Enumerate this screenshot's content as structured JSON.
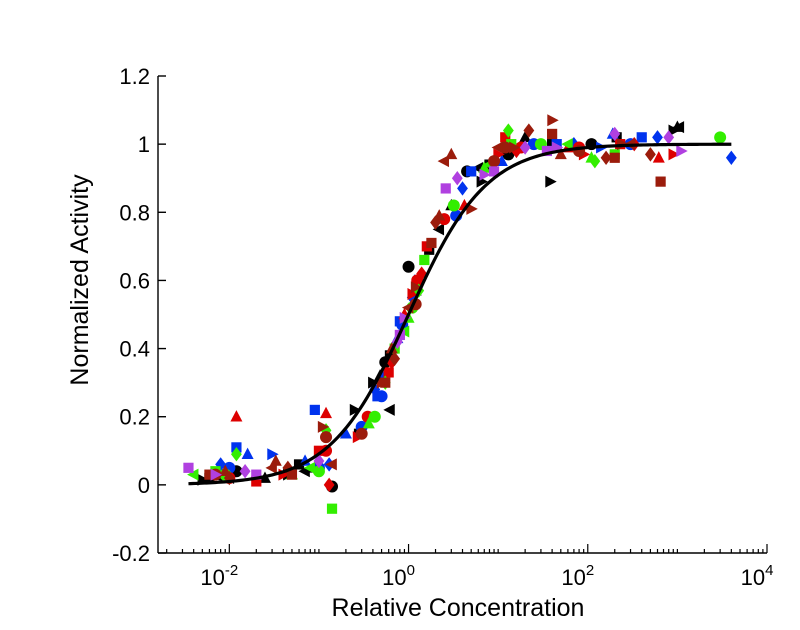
{
  "chart_data": {
    "type": "scatter",
    "title": "",
    "xlabel": "Relative Concentration",
    "ylabel": "Normalized Activity",
    "xscale": "log",
    "xlim": [
      0.0016,
      10000
    ],
    "ylim": [
      -0.2,
      1.2
    ],
    "x_ticks": [
      {
        "value": 0.01,
        "base": "10",
        "exp": "-2"
      },
      {
        "value": 1,
        "base": "10",
        "exp": "0"
      },
      {
        "value": 100,
        "base": "10",
        "exp": "2"
      },
      {
        "value": 10000,
        "base": "10",
        "exp": "4"
      }
    ],
    "y_ticks": [
      "-0.2",
      "0",
      "0.2",
      "0.4",
      "0.6",
      "0.8",
      "1",
      "1.2"
    ],
    "grid": false,
    "legend": "none",
    "fit_curve": {
      "model": "hill",
      "ec50": 1.0,
      "hill_slope": 1.0,
      "bottom": 0.0,
      "top": 1.0,
      "x_range": [
        0.0035,
        4000
      ],
      "color": "#000000"
    },
    "series": [
      {
        "marker": "circle",
        "color": "#000000",
        "points": [
          [
            0.008,
            0.03
          ],
          [
            0.012,
            0.04
          ],
          [
            0.14,
            -0.005
          ],
          [
            0.55,
            0.36
          ],
          [
            1.0,
            0.64
          ],
          [
            4.5,
            0.92
          ],
          [
            13.0,
            0.97
          ],
          [
            110,
            1.0
          ]
        ]
      },
      {
        "marker": "square",
        "color": "#000000",
        "points": [
          [
            0.006,
            0.02
          ],
          [
            0.06,
            0.06
          ],
          [
            0.28,
            0.15
          ],
          [
            0.62,
            0.38
          ],
          [
            1.7,
            0.69
          ],
          [
            8.0,
            0.94
          ],
          [
            40.0,
            1.0
          ],
          [
            210,
            1.02
          ]
        ]
      },
      {
        "marker": "triangle-up",
        "color": "#000000",
        "points": [
          [
            0.025,
            0.02
          ],
          [
            0.09,
            0.05
          ],
          [
            0.48,
            0.32
          ],
          [
            1.2,
            0.57
          ],
          [
            3.0,
            0.82
          ],
          [
            20.0,
            1.02
          ],
          [
            1000,
            1.05
          ]
        ]
      },
      {
        "marker": "triangle-right",
        "color": "#000000",
        "points": [
          [
            0.005,
            0.015
          ],
          [
            0.045,
            0.03
          ],
          [
            0.25,
            0.22
          ],
          [
            0.4,
            0.3
          ],
          [
            6.5,
            0.89
          ],
          [
            38.0,
            0.89
          ],
          [
            900,
            1.04
          ]
        ]
      },
      {
        "marker": "triangle-left",
        "color": "#000000",
        "points": [
          [
            0.01,
            0.02
          ],
          [
            0.07,
            0.04
          ],
          [
            0.62,
            0.22
          ],
          [
            2.2,
            0.75
          ],
          [
            6.0,
            0.93
          ],
          [
            1050,
            1.05
          ]
        ]
      },
      {
        "marker": "circle",
        "color": "#0033ee",
        "points": [
          [
            0.01,
            0.05
          ],
          [
            0.1,
            0.05
          ],
          [
            0.3,
            0.17
          ],
          [
            0.5,
            0.26
          ],
          [
            0.85,
            0.47
          ],
          [
            3.4,
            0.79
          ],
          [
            25.0,
            1.0
          ],
          [
            300,
            1.0
          ]
        ]
      },
      {
        "marker": "square",
        "color": "#0033ee",
        "points": [
          [
            0.012,
            0.11
          ],
          [
            0.09,
            0.22
          ],
          [
            0.45,
            0.26
          ],
          [
            0.8,
            0.48
          ],
          [
            5.0,
            0.92
          ],
          [
            45.0,
            1.0
          ],
          [
            400,
            1.02
          ]
        ]
      },
      {
        "marker": "triangle-up",
        "color": "#0033ee",
        "points": [
          [
            0.016,
            0.09
          ],
          [
            0.07,
            0.07
          ],
          [
            0.2,
            0.15
          ],
          [
            0.75,
            0.43
          ],
          [
            11.0,
            0.95
          ],
          [
            190,
            1.03
          ]
        ]
      },
      {
        "marker": "diamond",
        "color": "#0033ee",
        "points": [
          [
            0.008,
            0.06
          ],
          [
            0.13,
            0.06
          ],
          [
            0.42,
            0.28
          ],
          [
            1.1,
            0.55
          ],
          [
            4.0,
            0.87
          ],
          [
            70.0,
            1.0
          ],
          [
            600,
            1.02
          ],
          [
            4000,
            0.96
          ]
        ]
      },
      {
        "marker": "triangle-right",
        "color": "#0033ee",
        "points": [
          [
            0.03,
            0.09
          ],
          [
            0.55,
            0.32
          ],
          [
            1.3,
            0.6
          ],
          [
            14.0,
            1.0
          ],
          [
            140,
            0.99
          ]
        ]
      },
      {
        "marker": "circle",
        "color": "#dd0000",
        "points": [
          [
            0.01,
            0.02
          ],
          [
            0.12,
            0.1
          ],
          [
            0.35,
            0.2
          ],
          [
            1.25,
            0.6
          ],
          [
            2.5,
            0.78
          ],
          [
            18.0,
            0.99
          ],
          [
            80.0,
            0.99
          ]
        ]
      },
      {
        "marker": "square",
        "color": "#dd0000",
        "points": [
          [
            0.02,
            0.01
          ],
          [
            0.1,
            0.1
          ],
          [
            0.6,
            0.33
          ],
          [
            1.6,
            0.7
          ],
          [
            12.0,
            1.02
          ],
          [
            230,
            1.0
          ]
        ]
      },
      {
        "marker": "triangle-up",
        "color": "#dd0000",
        "points": [
          [
            0.012,
            0.2
          ],
          [
            0.12,
            0.21
          ],
          [
            0.9,
            0.5
          ],
          [
            4.2,
            0.82
          ],
          [
            60.0,
            0.99
          ],
          [
            620,
            0.96
          ]
        ]
      },
      {
        "marker": "triangle-right",
        "color": "#dd0000",
        "points": [
          [
            0.04,
            0.03
          ],
          [
            0.27,
            0.14
          ],
          [
            1.1,
            0.56
          ],
          [
            10.0,
            0.97
          ],
          [
            90.0,
            0.97
          ],
          [
            900,
            0.97
          ]
        ]
      },
      {
        "marker": "diamond",
        "color": "#dd0000",
        "points": [
          [
            0.13,
            0.0
          ],
          [
            0.65,
            0.36
          ],
          [
            1.4,
            0.62
          ],
          [
            16.0,
            0.98
          ],
          [
            330,
            1.0
          ]
        ]
      },
      {
        "marker": "circle",
        "color": "#33ee00",
        "points": [
          [
            0.009,
            0.03
          ],
          [
            0.1,
            0.04
          ],
          [
            0.42,
            0.2
          ],
          [
            1.1,
            0.52
          ],
          [
            3.2,
            0.82
          ],
          [
            30.0,
            1.0
          ],
          [
            3000,
            1.02
          ]
        ]
      },
      {
        "marker": "square",
        "color": "#33ee00",
        "points": [
          [
            0.007,
            0.04
          ],
          [
            0.14,
            -0.07
          ],
          [
            0.7,
            0.4
          ],
          [
            1.5,
            0.66
          ],
          [
            14.0,
            1.0
          ],
          [
            200,
            0.97
          ]
        ]
      },
      {
        "marker": "triangle-up",
        "color": "#33ee00",
        "points": [
          [
            0.05,
            0.03
          ],
          [
            0.36,
            0.18
          ],
          [
            1.0,
            0.49
          ],
          [
            7.0,
            0.93
          ],
          [
            110,
            0.96
          ]
        ]
      },
      {
        "marker": "diamond",
        "color": "#33ee00",
        "points": [
          [
            0.012,
            0.09
          ],
          [
            0.12,
            0.16
          ],
          [
            0.55,
            0.3
          ],
          [
            1.3,
            0.57
          ],
          [
            13.0,
            1.04
          ],
          [
            120,
            0.95
          ]
        ]
      },
      {
        "marker": "triangle-left",
        "color": "#33ee00",
        "points": [
          [
            0.004,
            0.03
          ],
          [
            0.08,
            0.05
          ],
          [
            0.9,
            0.45
          ],
          [
            8.0,
            0.94
          ],
          [
            60.0,
            1.0
          ]
        ]
      },
      {
        "marker": "circle",
        "color": "#9b1c0c",
        "points": [
          [
            0.007,
            0.03
          ],
          [
            0.12,
            0.14
          ],
          [
            0.3,
            0.15
          ],
          [
            1.2,
            0.53
          ],
          [
            9.0,
            0.95
          ],
          [
            12.0,
            0.99
          ],
          [
            80.0,
            0.98
          ]
        ]
      },
      {
        "marker": "square",
        "color": "#9b1c0c",
        "points": [
          [
            0.006,
            0.03
          ],
          [
            0.05,
            0.03
          ],
          [
            0.55,
            0.3
          ],
          [
            1.8,
            0.71
          ],
          [
            40.0,
            1.03
          ],
          [
            200,
            0.96
          ],
          [
            650,
            0.89
          ]
        ]
      },
      {
        "marker": "triangle-up",
        "color": "#9b1c0c",
        "points": [
          [
            0.009,
            0.04
          ],
          [
            0.033,
            0.07
          ],
          [
            0.65,
            0.4
          ],
          [
            2.2,
            0.79
          ],
          [
            3.0,
            0.97
          ],
          [
            50.0,
            0.97
          ]
        ]
      },
      {
        "marker": "triangle-right",
        "color": "#9b1c0c",
        "points": [
          [
            0.11,
            0.17
          ],
          [
            0.5,
            0.3
          ],
          [
            1.2,
            0.58
          ],
          [
            5.0,
            0.81
          ],
          [
            15.0,
            0.99
          ],
          [
            40.0,
            1.07
          ],
          [
            240,
            1.0
          ]
        ]
      },
      {
        "marker": "triangle-left",
        "color": "#9b1c0c",
        "points": [
          [
            0.03,
            0.05
          ],
          [
            0.14,
            0.06
          ],
          [
            1.0,
            0.52
          ],
          [
            2.5,
            0.95
          ],
          [
            10.0,
            0.99
          ],
          [
            300,
            1.0
          ]
        ]
      },
      {
        "marker": "diamond",
        "color": "#9b1c0c",
        "points": [
          [
            0.01,
            0.02
          ],
          [
            0.045,
            0.05
          ],
          [
            0.7,
            0.37
          ],
          [
            2.0,
            0.77
          ],
          [
            22.0,
            1.04
          ],
          [
            160,
            0.96
          ],
          [
            500,
            0.97
          ]
        ]
      },
      {
        "marker": "square",
        "color": "#b040e0",
        "points": [
          [
            0.0035,
            0.05
          ],
          [
            0.02,
            0.03
          ],
          [
            0.8,
            0.44
          ],
          [
            2.6,
            0.87
          ],
          [
            9.0,
            0.92
          ],
          [
            35.0,
            0.98
          ]
        ]
      },
      {
        "marker": "diamond",
        "color": "#b040e0",
        "points": [
          [
            0.015,
            0.04
          ],
          [
            0.1,
            0.07
          ],
          [
            0.75,
            0.42
          ],
          [
            3.5,
            0.9
          ],
          [
            20.0,
            0.99
          ],
          [
            200,
            1.03
          ],
          [
            800,
            1.02
          ]
        ]
      },
      {
        "marker": "triangle-right",
        "color": "#b040e0",
        "points": [
          [
            0.007,
            0.03
          ],
          [
            0.9,
            0.49
          ],
          [
            7.0,
            0.91
          ],
          [
            45.0,
            0.99
          ],
          [
            1100,
            0.98
          ]
        ]
      }
    ]
  }
}
